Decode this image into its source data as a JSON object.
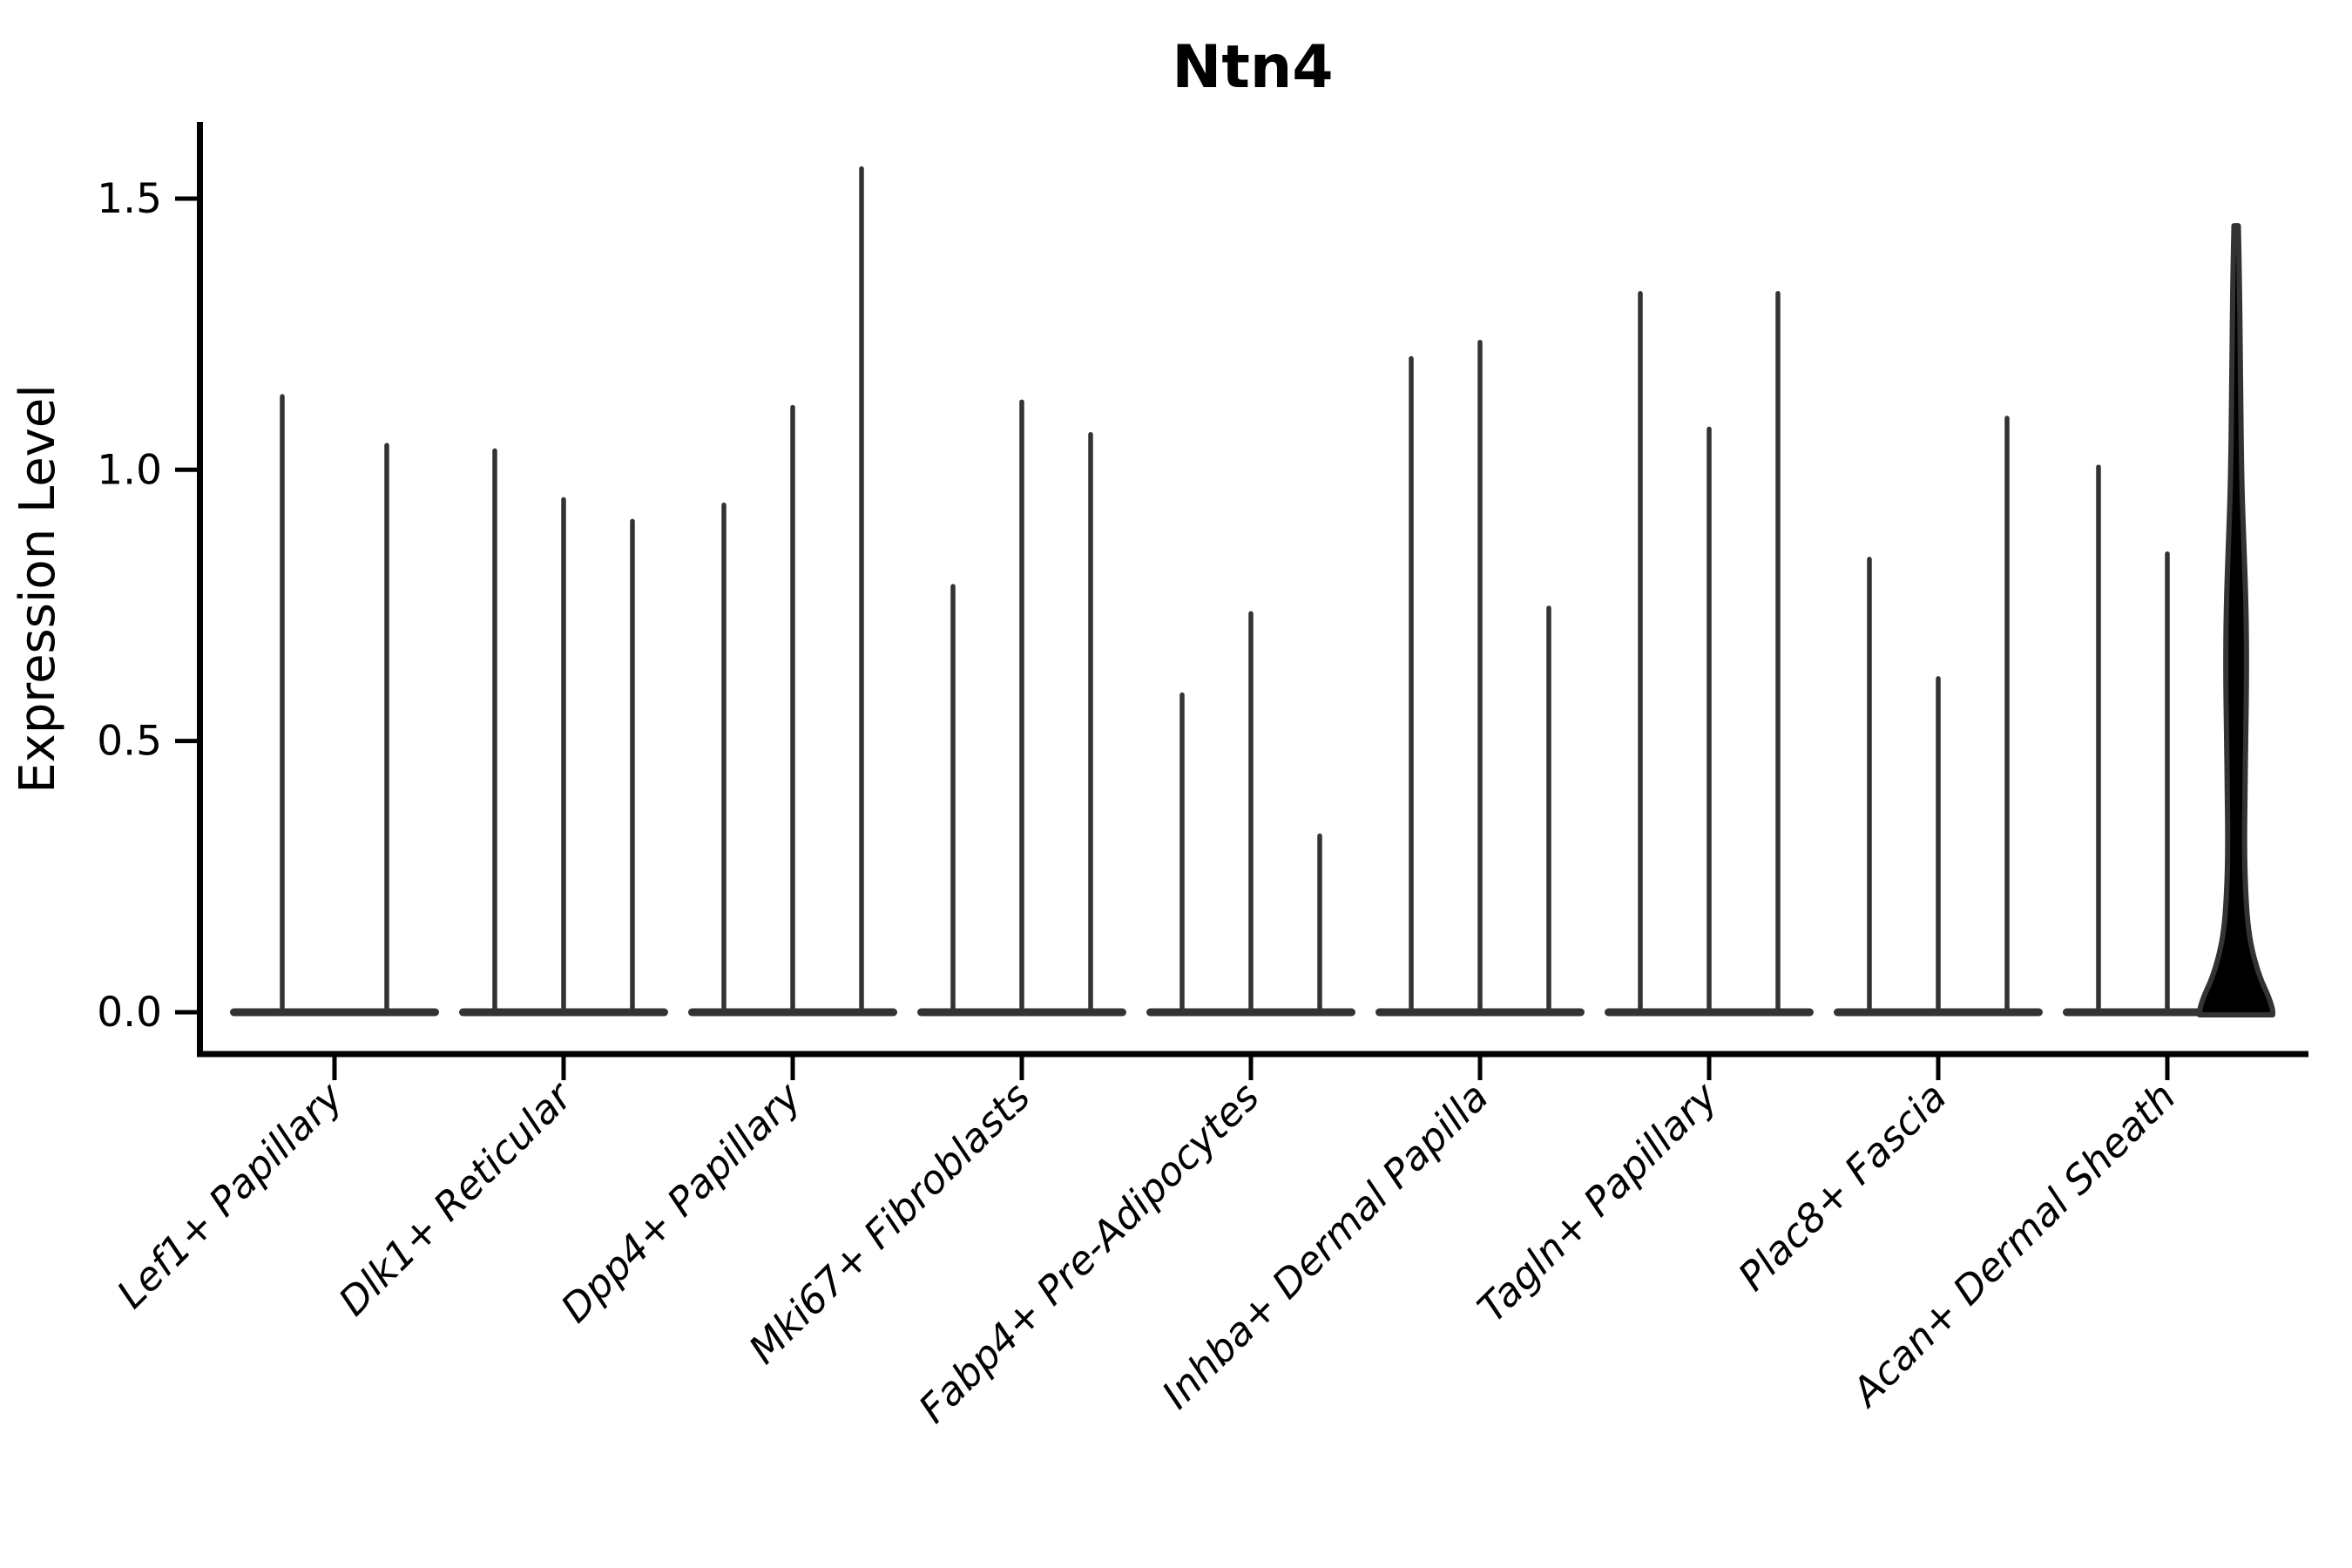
{
  "chart_data": {
    "type": "violin",
    "title": "Ntn4",
    "ylabel": "Expression Level",
    "xlabel": "",
    "ytick_labels": [
      "0.0",
      "0.5",
      "1.0",
      "1.5"
    ],
    "yticks": [
      0.0,
      0.5,
      1.0,
      1.5
    ],
    "ylim": [
      -0.08,
      1.64
    ],
    "grid": false,
    "legend_position": "none",
    "categories": [
      "Lef1+ Papillary",
      "Dlk1+ Reticular",
      "Dpp4+ Papillary",
      "Mki67+ Fibroblasts",
      "Fabp4+ Pre-Adipocytes",
      "Inhba+ Dermal Papilla",
      "Tagln+ Papillary",
      "Plac8+ Fascia",
      "Acan+ Dermal Sheath"
    ],
    "groups": [
      {
        "category": "Lef1+ Papillary",
        "violin_max_expression": [
          1.14,
          1.05
        ]
      },
      {
        "category": "Dlk1+ Reticular",
        "violin_max_expression": [
          1.04,
          0.95,
          0.91
        ]
      },
      {
        "category": "Dpp4+ Papillary",
        "violin_max_expression": [
          0.94,
          1.12,
          1.56
        ]
      },
      {
        "category": "Mki67+ Fibroblasts",
        "violin_max_expression": [
          0.79,
          1.13,
          1.07
        ]
      },
      {
        "category": "Fabp4+ Pre-Adipocytes",
        "violin_max_expression": [
          0.59,
          0.74,
          0.33
        ]
      },
      {
        "category": "Inhba+ Dermal Papilla",
        "violin_max_expression": [
          1.21,
          1.24,
          0.75
        ]
      },
      {
        "category": "Tagln+ Papillary",
        "violin_max_expression": [
          1.33,
          1.08,
          1.33
        ]
      },
      {
        "category": "Plac8+ Fascia",
        "violin_max_expression": [
          0.84,
          0.62,
          1.1
        ]
      },
      {
        "category": "Acan+ Dermal Sheath",
        "violin_max_expression": [
          1.01,
          0.85,
          1.45
        ],
        "highlight_index": 2
      }
    ],
    "highlight_violin": {
      "category": "Acan+ Dermal Sheath",
      "slot": 3,
      "max_value": 1.45,
      "shape": "kde_profile [expression_value, half_width_fraction_of_slot]",
      "profile": [
        [
          1.45,
          0.03
        ],
        [
          1.33,
          0.048
        ],
        [
          1.15,
          0.06
        ],
        [
          0.97,
          0.077
        ],
        [
          0.86,
          0.107
        ],
        [
          0.74,
          0.137
        ],
        [
          0.63,
          0.143
        ],
        [
          0.52,
          0.133
        ],
        [
          0.4,
          0.119
        ],
        [
          0.3,
          0.114
        ],
        [
          0.235,
          0.125
        ],
        [
          0.165,
          0.155
        ],
        [
          0.115,
          0.214
        ],
        [
          0.065,
          0.321
        ],
        [
          0.03,
          0.44
        ],
        [
          0.008,
          0.494
        ],
        [
          0.0,
          0.5
        ]
      ]
    },
    "colors": {
      "violin_stroke": "#333333",
      "highlight_fill": "#f93130",
      "axis": "#000000",
      "text": "#000000",
      "background": "#ffffff"
    }
  }
}
